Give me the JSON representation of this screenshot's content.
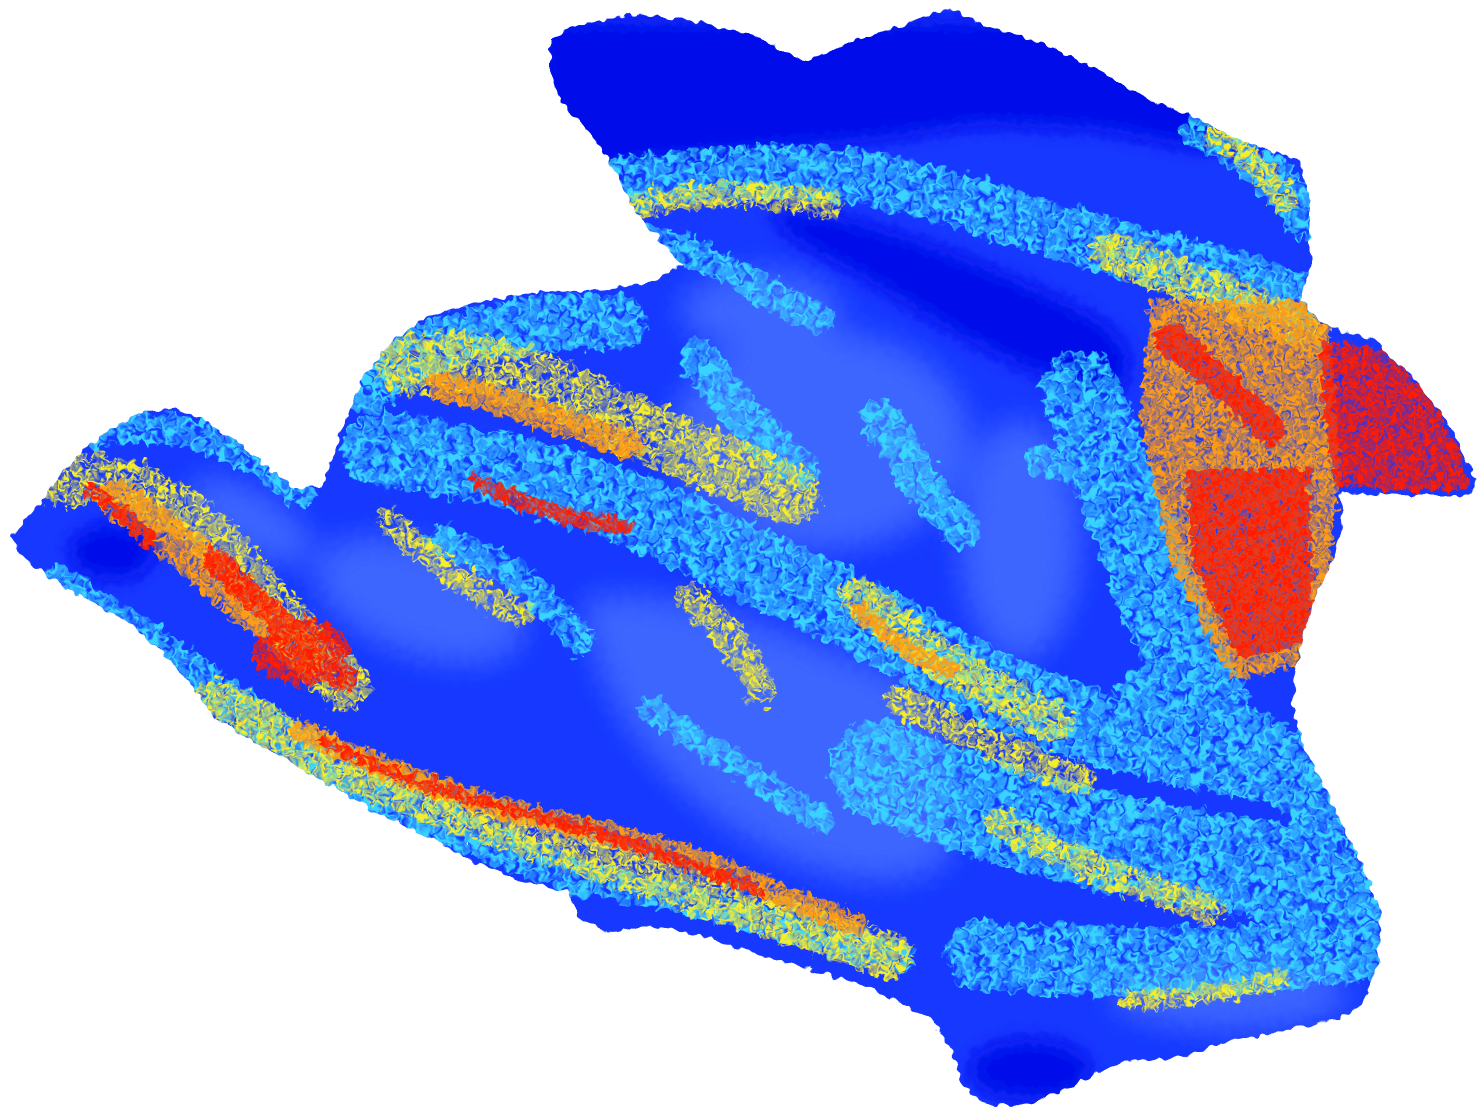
{
  "map": {
    "colors": {
      "background": "#ffffff",
      "deep": "#0610ea",
      "base": "#1638ff",
      "light_blue": "#3d66ff",
      "cyan": "#38d4ff",
      "yellow": "#f6ee2c",
      "orange": "#ff9c12",
      "red": "#ff1c00"
    }
  }
}
